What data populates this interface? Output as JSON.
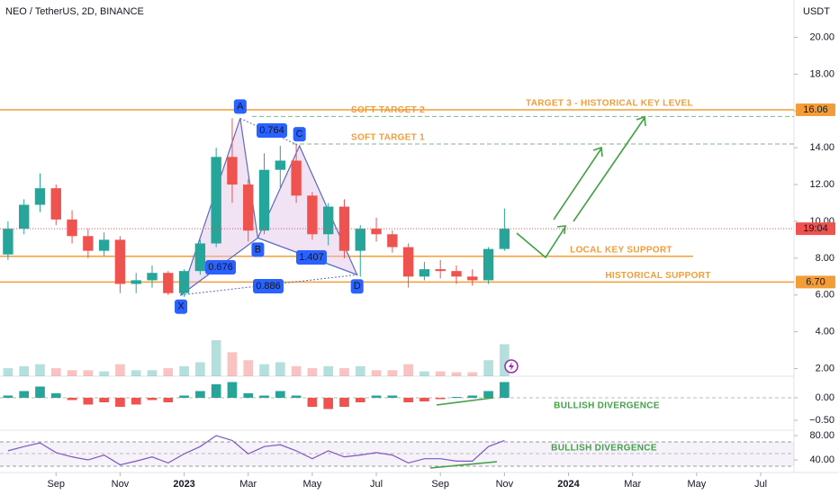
{
  "chart_data": {
    "type": "candlestick",
    "title": "NEO / TetherUS, 2D, BINANCE",
    "y_axis_label": "USDT",
    "x": [
      -1.5,
      -1,
      -0.5,
      0,
      0.5,
      1,
      1.5,
      2,
      2.5,
      3,
      3.5,
      4,
      4.5,
      5,
      5.5,
      6,
      6.5,
      7,
      7.5,
      8,
      8.5,
      9,
      9.5,
      10,
      10.5,
      11,
      11.5,
      12,
      12.5,
      13,
      13.5,
      14
    ],
    "open": [
      8.2,
      9.6,
      10.9,
      11.8,
      10.1,
      9.2,
      8.4,
      9.0,
      6.6,
      6.8,
      7.2,
      6.1,
      7.3,
      8.8,
      13.5,
      12.0,
      9.5,
      12.8,
      13.3,
      11.4,
      9.3,
      10.8,
      8.4,
      9.6,
      9.3,
      8.6,
      7.0,
      7.4,
      7.3,
      7.0,
      6.8,
      8.5
    ],
    "high": [
      10.0,
      11.2,
      12.6,
      12.0,
      10.6,
      9.6,
      9.4,
      9.2,
      7.2,
      7.6,
      7.3,
      7.4,
      9.0,
      14.0,
      15.6,
      12.3,
      13.7,
      14.1,
      14.2,
      11.6,
      11.0,
      11.2,
      9.8,
      10.2,
      9.5,
      8.8,
      7.8,
      7.9,
      7.6,
      7.4,
      8.6,
      10.7
    ],
    "low": [
      7.9,
      9.3,
      10.5,
      9.8,
      8.8,
      8.0,
      8.1,
      6.1,
      6.1,
      6.4,
      6.0,
      5.9,
      7.1,
      8.6,
      11.0,
      8.9,
      9.3,
      11.8,
      11.0,
      9.0,
      8.7,
      8.0,
      7.0,
      8.9,
      8.3,
      6.4,
      6.8,
      6.9,
      6.6,
      6.5,
      6.6,
      8.4
    ],
    "close": [
      9.6,
      10.9,
      11.8,
      10.1,
      9.2,
      8.4,
      9.0,
      6.6,
      6.8,
      7.2,
      6.1,
      7.3,
      8.8,
      13.5,
      12.0,
      9.5,
      12.8,
      13.3,
      11.4,
      9.3,
      10.8,
      8.4,
      9.6,
      9.3,
      8.6,
      7.0,
      7.4,
      7.3,
      7.0,
      6.8,
      8.5,
      9.6
    ],
    "xlim": [
      -1.75,
      23.04
    ],
    "xticks": [
      {
        "value": 0,
        "label": "Sep"
      },
      {
        "value": 2,
        "label": "Nov"
      },
      {
        "value": 4,
        "label": "2023"
      },
      {
        "value": 6,
        "label": "Mar"
      },
      {
        "value": 8,
        "label": "May"
      },
      {
        "value": 10,
        "label": "Jul"
      },
      {
        "value": 12,
        "label": "Sep"
      },
      {
        "value": 14,
        "label": "Nov"
      },
      {
        "value": 16,
        "label": "2024"
      },
      {
        "value": 18,
        "label": "Mar"
      },
      {
        "value": 20,
        "label": "May"
      },
      {
        "value": 22,
        "label": "Jul"
      }
    ],
    "ylim": [
      1,
      21
    ],
    "yticks": [
      {
        "value": 2,
        "label": "2.00"
      },
      {
        "value": 4,
        "label": "4.00"
      },
      {
        "value": 6,
        "label": "6.00"
      },
      {
        "value": 8,
        "label": "8.00"
      },
      {
        "value": 10,
        "label": "10.00"
      },
      {
        "value": 12,
        "label": "12.00"
      },
      {
        "value": 14,
        "label": "14.00"
      },
      {
        "value": 16,
        "label": "16.00"
      },
      {
        "value": 18,
        "label": "18.00"
      },
      {
        "value": 20,
        "label": "20.00"
      }
    ],
    "up_color": "#26a69a",
    "down_color": "#ef5350",
    "last_price_tag": "19:04",
    "levels": [
      {
        "value": 16.06,
        "label": "TARGET 3 - HISTORICAL KEY LEVEL",
        "tag": "16.06"
      },
      {
        "value": 15.7,
        "label": "SOFT TARGET 2"
      },
      {
        "value": 14.2,
        "label": "SOFT TARGET 1"
      },
      {
        "value": 8.1,
        "label": "LOCAL KEY SUPPORT"
      },
      {
        "value": 6.7,
        "label": "HISTORICAL SUPPORT",
        "tag": "6.70"
      }
    ],
    "pattern": {
      "points": [
        {
          "name": "X",
          "x": 3.9,
          "y": 6.0
        },
        {
          "name": "A",
          "x": 5.75,
          "y": 15.6
        },
        {
          "name": "B",
          "x": 6.3,
          "y": 9.1
        },
        {
          "name": "C",
          "x": 7.6,
          "y": 14.1
        },
        {
          "name": "D",
          "x": 9.4,
          "y": 7.1
        }
      ],
      "ratios": [
        "0.764",
        "0.676",
        "1.407",
        "0.886"
      ]
    },
    "volume": [
      20,
      25,
      30,
      20,
      15,
      15,
      12,
      30,
      15,
      15,
      20,
      25,
      35,
      90,
      60,
      40,
      30,
      35,
      25,
      20,
      25,
      20,
      25,
      15,
      15,
      30,
      12,
      12,
      10,
      10,
      40,
      80
    ],
    "macd": {
      "histogram": [
        0.05,
        0.15,
        0.25,
        0.1,
        -0.05,
        -0.15,
        -0.1,
        -0.2,
        -0.15,
        -0.05,
        -0.1,
        0.05,
        0.15,
        0.3,
        0.35,
        0.1,
        0.05,
        0.15,
        0.05,
        -0.2,
        -0.25,
        -0.2,
        -0.1,
        0.05,
        0.05,
        -0.1,
        -0.08,
        -0.03,
        0.02,
        0.05,
        0.15,
        0.35
      ],
      "ylim": [
        -0.72,
        0.48
      ],
      "yticks": [
        {
          "value": 0,
          "label": "0.00"
        },
        {
          "value": -0.5,
          "label": "−0.50"
        }
      ],
      "annotation": "BULLISH DIVERGENCE"
    },
    "rsi": {
      "values": [
        55,
        62,
        68,
        52,
        45,
        40,
        48,
        32,
        38,
        45,
        35,
        50,
        62,
        80,
        72,
        50,
        62,
        65,
        55,
        42,
        55,
        45,
        48,
        52,
        48,
        35,
        42,
        42,
        38,
        38,
        62,
        72
      ],
      "ylim": [
        19.3,
        88.9
      ],
      "yticks": [
        {
          "value": 80,
          "label": "80.00"
        },
        {
          "value": 40,
          "label": "40.00"
        }
      ],
      "annotation": "BULLISH DIVERGENCE"
    }
  }
}
